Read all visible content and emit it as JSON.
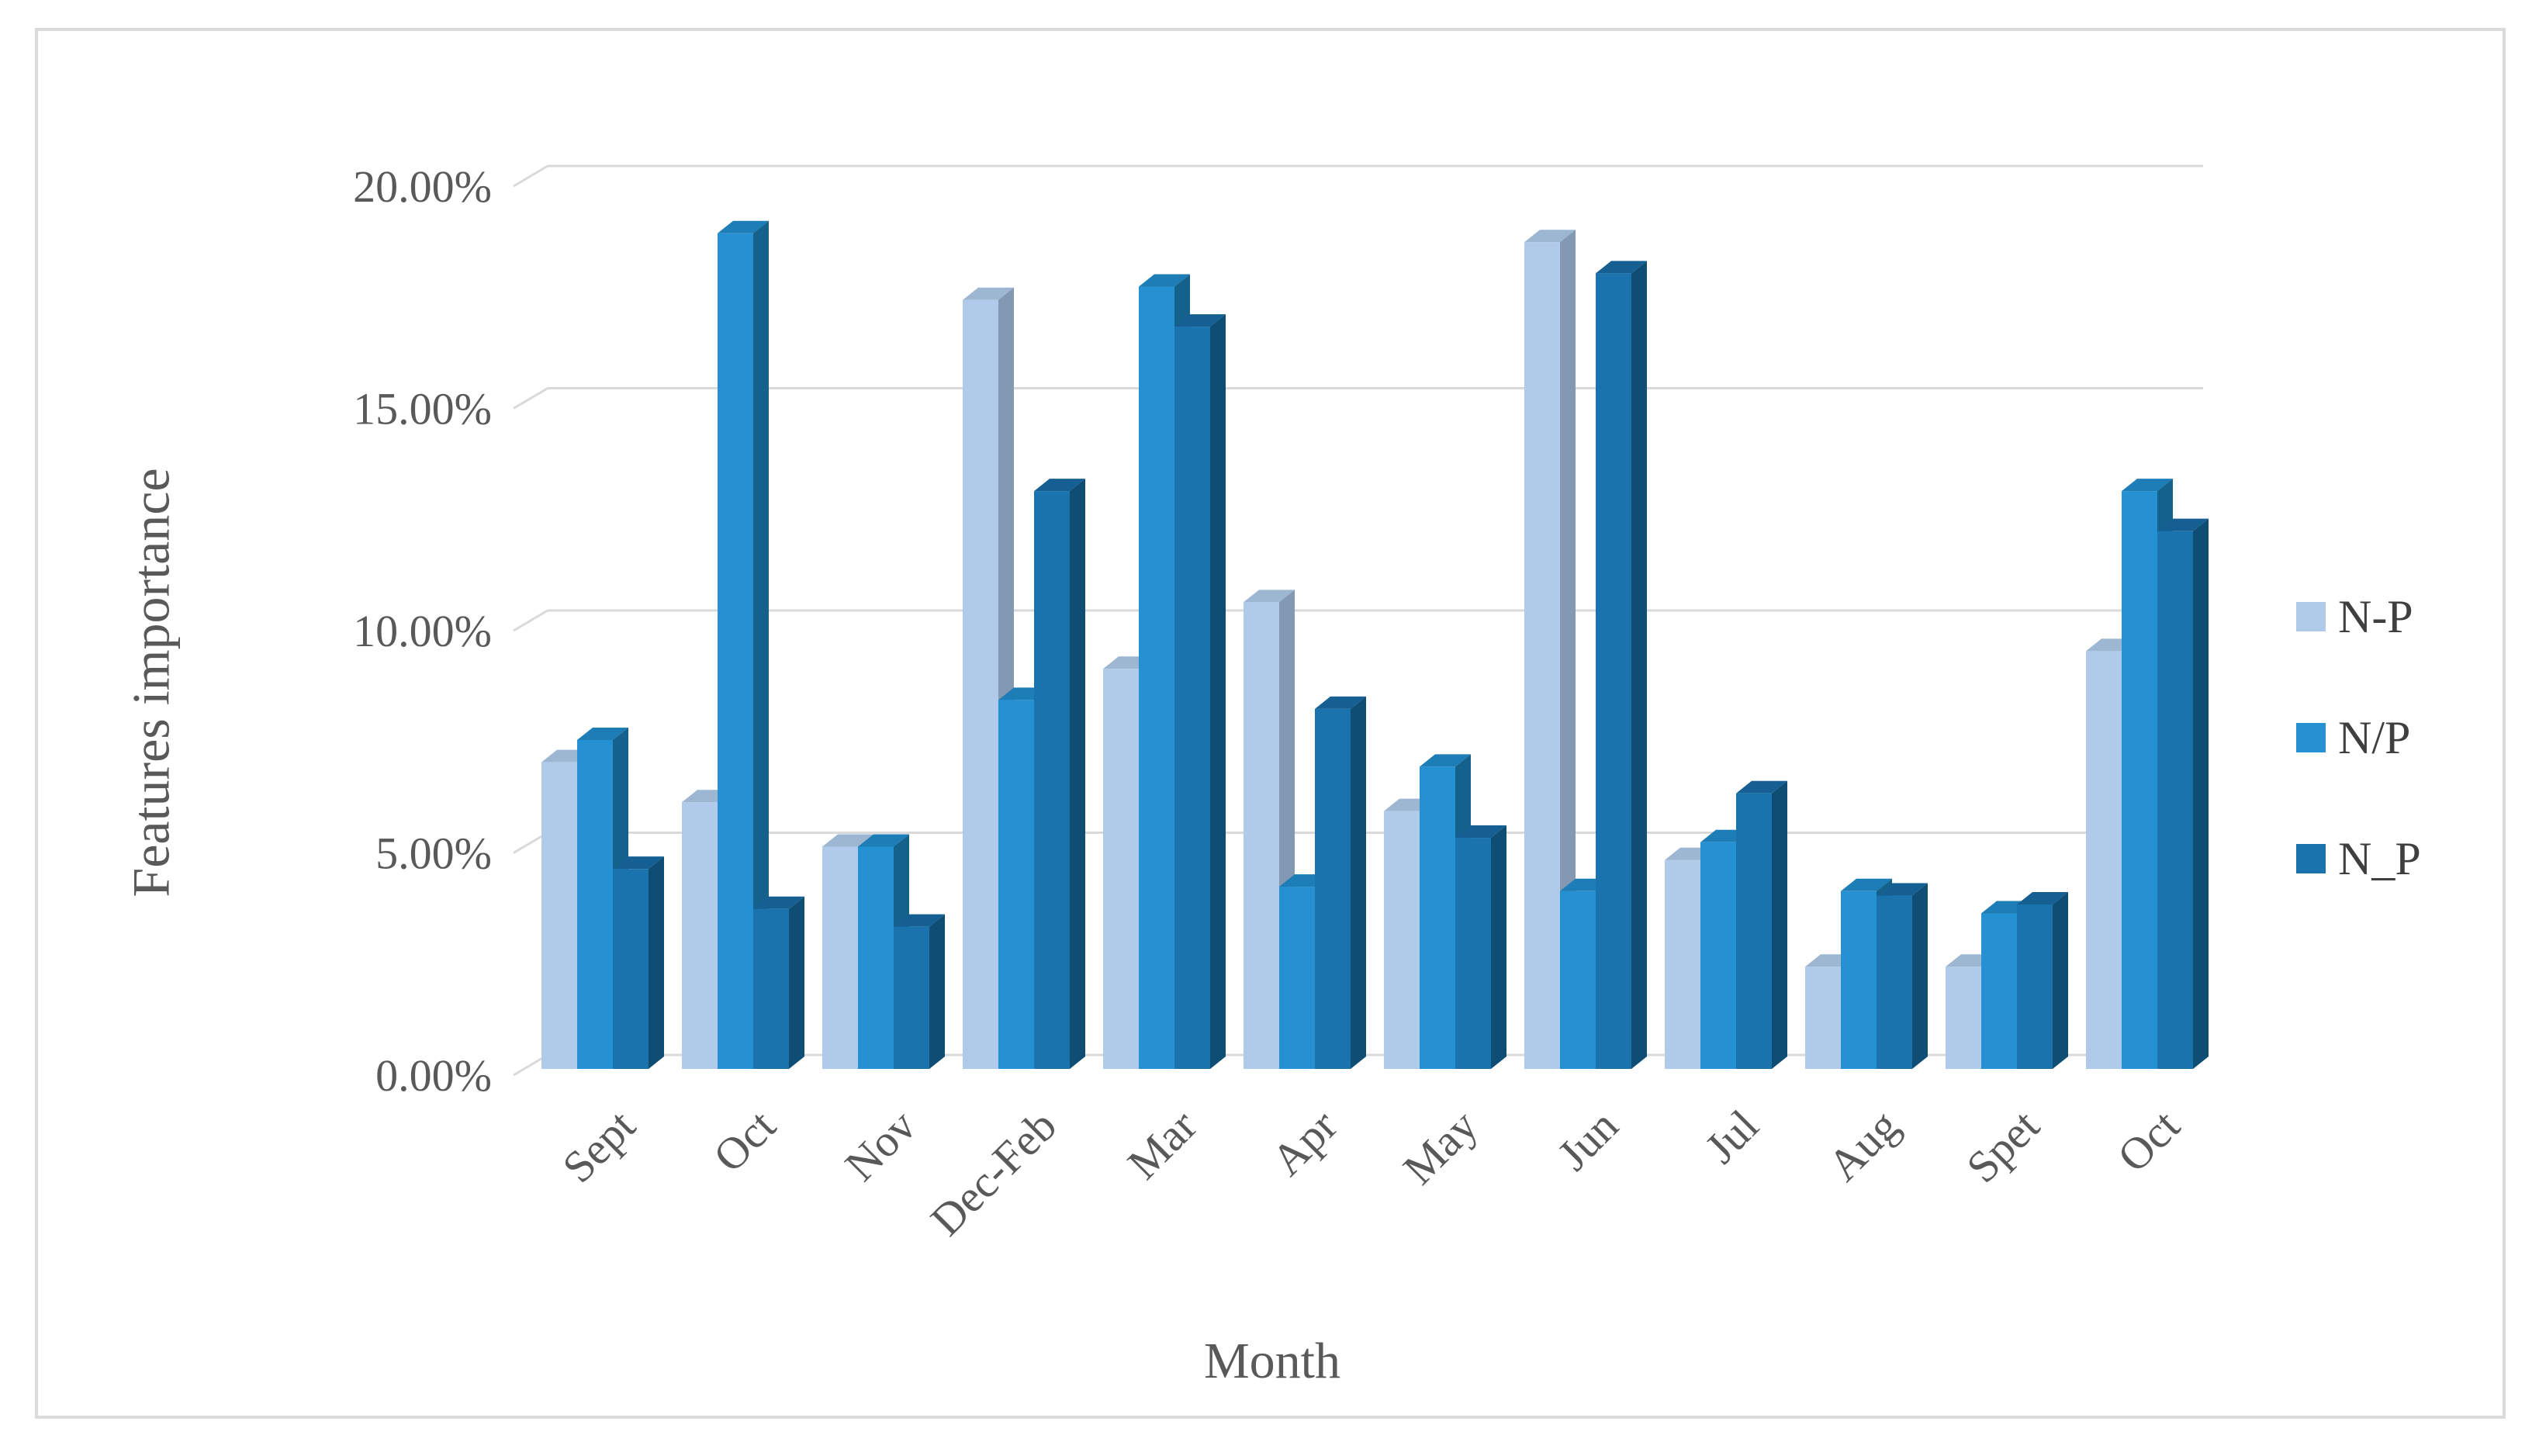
{
  "chart_data": {
    "type": "bar",
    "style": "3d-clustered-column",
    "title": "",
    "xlabel": "Month",
    "ylabel": "Features importance",
    "categories": [
      "Sept",
      "Oct",
      "Nov",
      "Dec-Feb",
      "Mar",
      "Apr",
      "May",
      "Jun",
      "Jul",
      "Aug",
      "Spet",
      "Oct"
    ],
    "series": [
      {
        "name": "N-P",
        "values": [
          6.9,
          6.0,
          5.0,
          17.3,
          9.0,
          10.5,
          5.8,
          18.6,
          4.7,
          2.3,
          2.3,
          9.4
        ],
        "color": "#AFCBE9",
        "side_color": "#8298B3",
        "top_color": "#9DB6D1"
      },
      {
        "name": "N/P",
        "values": [
          7.4,
          18.8,
          5.0,
          8.3,
          17.6,
          4.1,
          6.8,
          4.0,
          5.1,
          4.0,
          3.5,
          13.0
        ],
        "color": "#2590D2",
        "side_color": "#14618C",
        "top_color": "#1D7DB6"
      },
      {
        "name": "N_P",
        "values": [
          4.5,
          3.6,
          3.2,
          13.0,
          16.7,
          8.1,
          5.2,
          17.9,
          6.2,
          3.9,
          3.7,
          12.1
        ],
        "color": "#1B73AE",
        "side_color": "#0E4E74",
        "top_color": "#165F92"
      }
    ],
    "ylim": [
      0,
      20
    ],
    "ytick_labels": [
      "0.00%",
      "5.00%",
      "10.00%",
      "15.00%",
      "20.00%"
    ],
    "ytick_values": [
      0,
      5,
      10,
      15,
      20
    ],
    "grid": true,
    "legend_position": "right",
    "gridline_color": "#D9D9D9",
    "axis_text_color": "#595959",
    "legend_text_color": "#3F3F3F",
    "background_color": "#FFFFFF",
    "frame_color": "#DBDBDB"
  }
}
